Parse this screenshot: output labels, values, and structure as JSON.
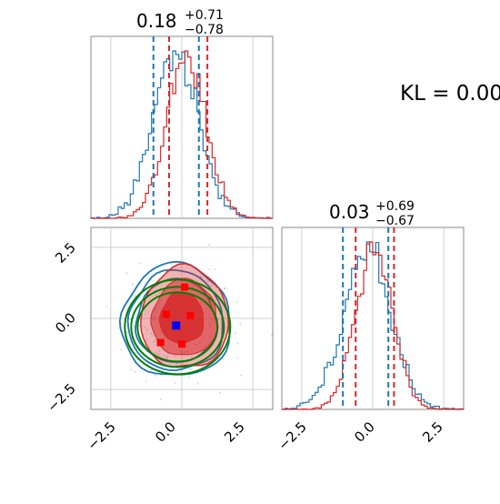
{
  "figure": {
    "kl_text": "KL = 0.00"
  },
  "colors": {
    "blue": "#1f77b4",
    "red": "#d62728",
    "green": "#008000",
    "grid": "#cfcfcf",
    "frame": "#888888"
  },
  "chart_data": [
    {
      "panel": "marginal-param-1",
      "type": "area",
      "title_value": "0.18",
      "title_plus": "+0.71",
      "title_minus": "−0.78",
      "xlim": [
        -3.2,
        3.2
      ],
      "grid": true,
      "series": [
        {
          "color": "blue",
          "kind": "histogram",
          "quantile_lines": [
            -1.0,
            0.6
          ]
        },
        {
          "color": "red",
          "kind": "histogram",
          "quantile_lines": [
            -0.45,
            0.9
          ]
        }
      ]
    },
    {
      "panel": "joint-param-1-param-2",
      "type": "scatter",
      "xlim": [
        -3.2,
        3.2
      ],
      "ylim": [
        -3.2,
        3.2
      ],
      "x_ticks": [
        "−2.5",
        "0.0",
        "2.5"
      ],
      "y_ticks": [
        "2.5",
        "0.0",
        "−2.5"
      ],
      "grid": true,
      "blue_marker": {
        "x": -0.2,
        "y": -0.25
      },
      "red_markers": [
        {
          "x": -0.55,
          "y": 0.15
        },
        {
          "x": 0.1,
          "y": 1.1
        },
        {
          "x": 0.3,
          "y": 0.1
        },
        {
          "x": 0.0,
          "y": -0.9
        },
        {
          "x": -0.75,
          "y": -0.85
        }
      ],
      "contour_levels": 3
    },
    {
      "panel": "marginal-param-2",
      "type": "area",
      "title_value": "0.03",
      "title_plus": "+0.69",
      "title_minus": "−0.67",
      "xlim": [
        -3.2,
        3.2
      ],
      "x_ticks": [
        "−2.5",
        "0.0",
        "2.5"
      ],
      "grid": true,
      "series": [
        {
          "color": "blue",
          "kind": "histogram",
          "quantile_lines": [
            -1.05,
            0.55
          ]
        },
        {
          "color": "red",
          "kind": "histogram",
          "quantile_lines": [
            -0.6,
            0.75
          ]
        }
      ]
    }
  ]
}
